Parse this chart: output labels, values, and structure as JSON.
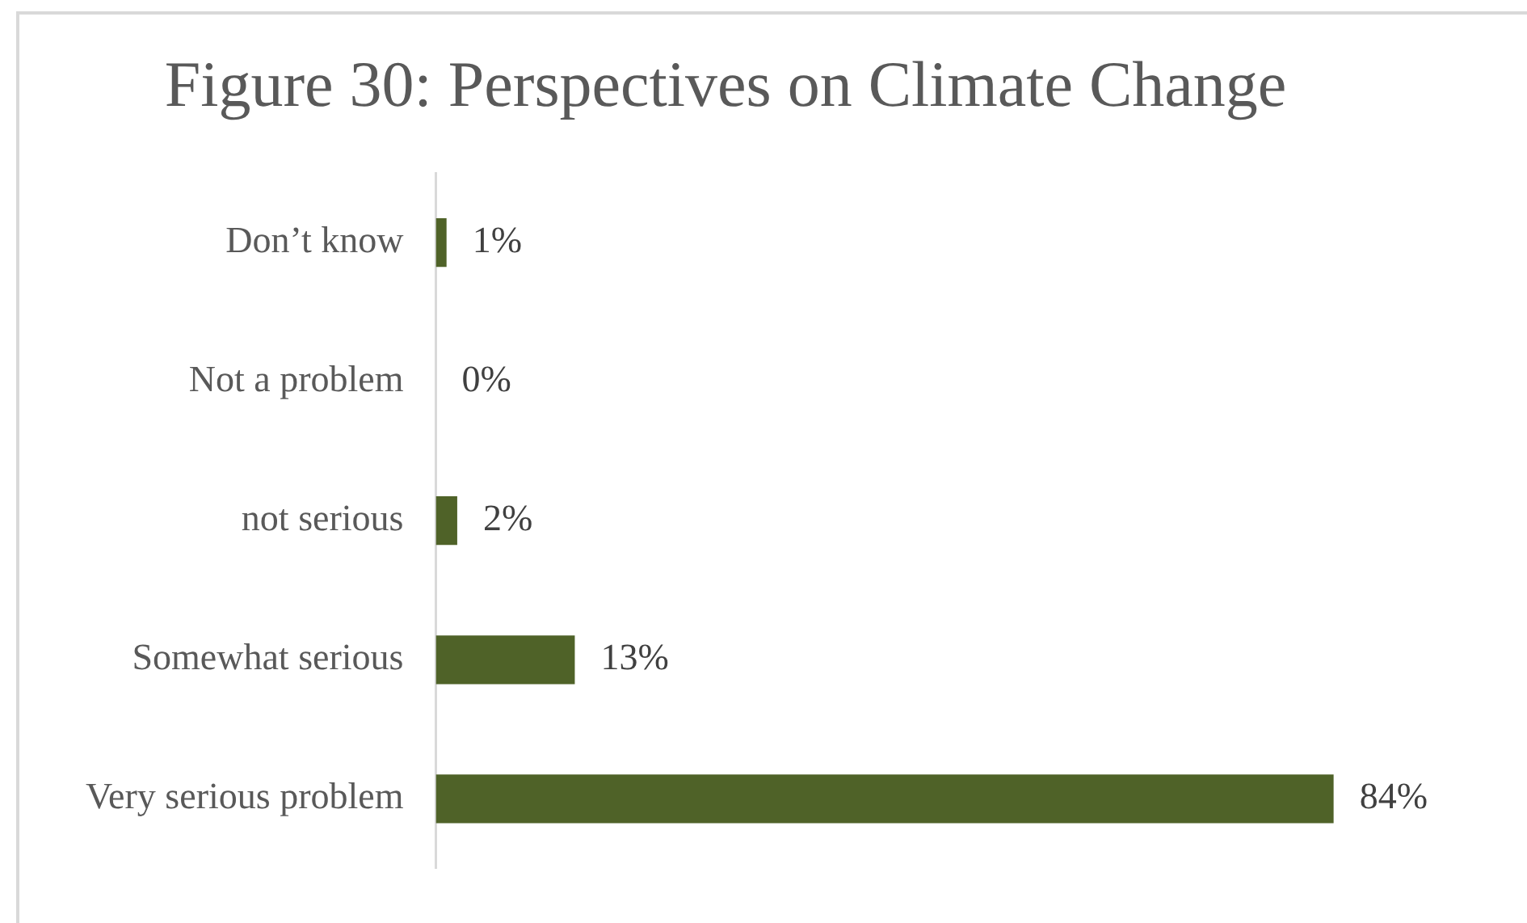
{
  "chart_data": {
    "type": "bar",
    "orientation": "horizontal",
    "title": "Figure 30: Perspectives on Climate Change",
    "categories": [
      "Don’t know",
      "Not a problem",
      "not serious",
      "Somewhat serious",
      "Very serious problem"
    ],
    "values": [
      1,
      0,
      2,
      13,
      84
    ],
    "value_labels": [
      "1%",
      "0%",
      "2%",
      "13%",
      "84%"
    ],
    "color": "#4f6228"
  }
}
